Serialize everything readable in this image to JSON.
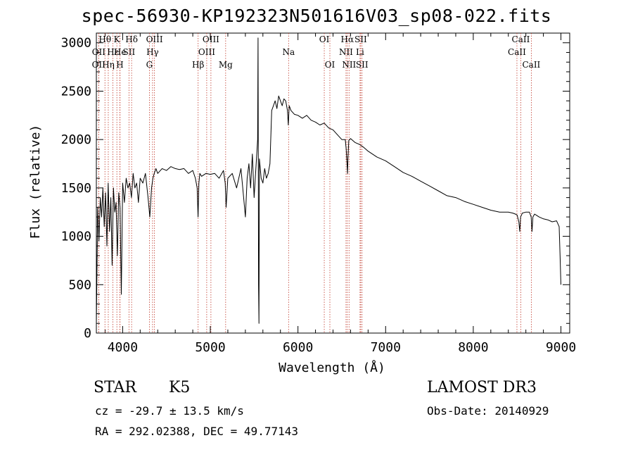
{
  "chart_data": {
    "type": "line",
    "title": "spec-56930-KP192323N501616V03_sp08-022.fits",
    "xlabel": "Wavelength (Å)",
    "ylabel": "Flux (relative)",
    "xlim": [
      3700,
      9100
    ],
    "ylim": [
      0,
      3100
    ],
    "x_ticks": [
      4000,
      5000,
      6000,
      7000,
      8000,
      9000
    ],
    "y_ticks": [
      0,
      500,
      1000,
      1500,
      2000,
      2500,
      3000
    ],
    "series": [
      {
        "name": "flux",
        "x": [
          3700,
          3715,
          3730,
          3745,
          3760,
          3775,
          3790,
          3805,
          3820,
          3835,
          3850,
          3865,
          3880,
          3895,
          3910,
          3925,
          3940,
          3955,
          3970,
          3985,
          4000,
          4020,
          4040,
          4060,
          4080,
          4100,
          4120,
          4140,
          4160,
          4180,
          4200,
          4230,
          4260,
          4290,
          4310,
          4330,
          4345,
          4360,
          4380,
          4400,
          4450,
          4500,
          4550,
          4600,
          4650,
          4700,
          4750,
          4800,
          4830,
          4850,
          4860,
          4870,
          4880,
          4900,
          4950,
          5000,
          5050,
          5100,
          5150,
          5170,
          5180,
          5200,
          5250,
          5300,
          5350,
          5380,
          5400,
          5420,
          5440,
          5460,
          5480,
          5500,
          5520,
          5540,
          5545,
          5550,
          5555,
          5560,
          5580,
          5600,
          5620,
          5640,
          5660,
          5680,
          5700,
          5720,
          5740,
          5760,
          5780,
          5800,
          5820,
          5840,
          5860,
          5880,
          5890,
          5900,
          5920,
          5960,
          6000,
          6050,
          6100,
          6150,
          6200,
          6250,
          6300,
          6350,
          6400,
          6450,
          6500,
          6540,
          6550,
          6560,
          6565,
          6570,
          6580,
          6600,
          6650,
          6700,
          6750,
          6800,
          6900,
          7000,
          7100,
          7200,
          7300,
          7400,
          7500,
          7600,
          7700,
          7800,
          7900,
          8000,
          8100,
          8200,
          8300,
          8400,
          8450,
          8480,
          8500,
          8520,
          8530,
          8540,
          8560,
          8600,
          8640,
          8660,
          8670,
          8680,
          8700,
          8750,
          8800,
          8850,
          8900,
          8950,
          8980,
          8990,
          9000
        ],
        "y": [
          100,
          1300,
          950,
          1400,
          1200,
          1500,
          1100,
          1450,
          900,
          1550,
          1050,
          1400,
          700,
          1500,
          1250,
          1350,
          800,
          1450,
          1300,
          400,
          1550,
          1350,
          1600,
          1500,
          1550,
          1400,
          1650,
          1500,
          1550,
          1350,
          1600,
          1550,
          1650,
          1400,
          1200,
          1500,
          1600,
          1650,
          1700,
          1650,
          1700,
          1680,
          1720,
          1700,
          1690,
          1700,
          1650,
          1680,
          1600,
          1500,
          1200,
          1550,
          1650,
          1620,
          1650,
          1640,
          1650,
          1600,
          1680,
          1550,
          1300,
          1600,
          1650,
          1500,
          1700,
          1400,
          1200,
          1600,
          1750,
          1500,
          1850,
          1400,
          1700,
          2000,
          3050,
          500,
          100,
          1800,
          1600,
          1550,
          1700,
          1600,
          1650,
          1750,
          2300,
          2350,
          2400,
          2320,
          2450,
          2400,
          2350,
          2420,
          2400,
          2300,
          2150,
          2350,
          2300,
          2260,
          2250,
          2220,
          2250,
          2200,
          2180,
          2150,
          2170,
          2120,
          2100,
          2050,
          2000,
          2000,
          1900,
          1750,
          1650,
          1800,
          1990,
          2010,
          1970,
          1950,
          1920,
          1880,
          1820,
          1780,
          1720,
          1660,
          1620,
          1570,
          1520,
          1470,
          1420,
          1400,
          1360,
          1330,
          1300,
          1270,
          1250,
          1250,
          1240,
          1230,
          1220,
          1150,
          1050,
          1200,
          1240,
          1250,
          1250,
          1200,
          1050,
          1200,
          1230,
          1200,
          1180,
          1170,
          1150,
          1160,
          1100,
          800,
          500
        ]
      }
    ],
    "lines": [
      {
        "label": "Hθ",
        "x": 3798,
        "row": 1
      },
      {
        "label": "OII",
        "x": 3727,
        "row": 2
      },
      {
        "label": "OII",
        "x": 3726,
        "row": 3
      },
      {
        "label": "Hε",
        "x": 3889,
        "row": 2
      },
      {
        "label": "Hη",
        "x": 3836,
        "row": 3
      },
      {
        "label": "K",
        "x": 3934,
        "row": 1
      },
      {
        "label": "He",
        "x": 3970,
        "row": 2
      },
      {
        "label": "H",
        "x": 3969,
        "row": 3
      },
      {
        "label": "Hδ",
        "x": 4102,
        "row": 1
      },
      {
        "label": "SII",
        "x": 4072,
        "row": 2
      },
      {
        "label": "OIII",
        "x": 4363,
        "row": 1
      },
      {
        "label": "Hγ",
        "x": 4341,
        "row": 2
      },
      {
        "label": "G",
        "x": 4305,
        "row": 3
      },
      {
        "label": "Hβ",
        "x": 4861,
        "row": 3
      },
      {
        "label": "OIII",
        "x": 5007,
        "row": 1
      },
      {
        "label": "OIII",
        "x": 4959,
        "row": 2
      },
      {
        "label": "Mg",
        "x": 5175,
        "row": 3
      },
      {
        "label": "Na",
        "x": 5893,
        "row": 2
      },
      {
        "label": "OI",
        "x": 6300,
        "row": 1
      },
      {
        "label": "OI",
        "x": 6364,
        "row": 3
      },
      {
        "label": "Hα",
        "x": 6563,
        "row": 1
      },
      {
        "label": "NII",
        "x": 6548,
        "row": 2
      },
      {
        "label": "NII",
        "x": 6583,
        "row": 3
      },
      {
        "label": "SII",
        "x": 6716,
        "row": 1
      },
      {
        "label": "Li",
        "x": 6708,
        "row": 2
      },
      {
        "label": "SII",
        "x": 6731,
        "row": 3
      },
      {
        "label": "CaII",
        "x": 8542,
        "row": 1
      },
      {
        "label": "CaII",
        "x": 8498,
        "row": 2
      },
      {
        "label": "CaII",
        "x": 8662,
        "row": 3
      }
    ]
  },
  "info": {
    "object_class": "STAR",
    "subclass": "K5",
    "survey": "LAMOST DR3",
    "redshift": "cz = -29.7 ± 13.5 km/s",
    "obs_date": "Obs-Date: 20140929",
    "coords": "RA = 292.02388, DEC =  49.77143"
  }
}
